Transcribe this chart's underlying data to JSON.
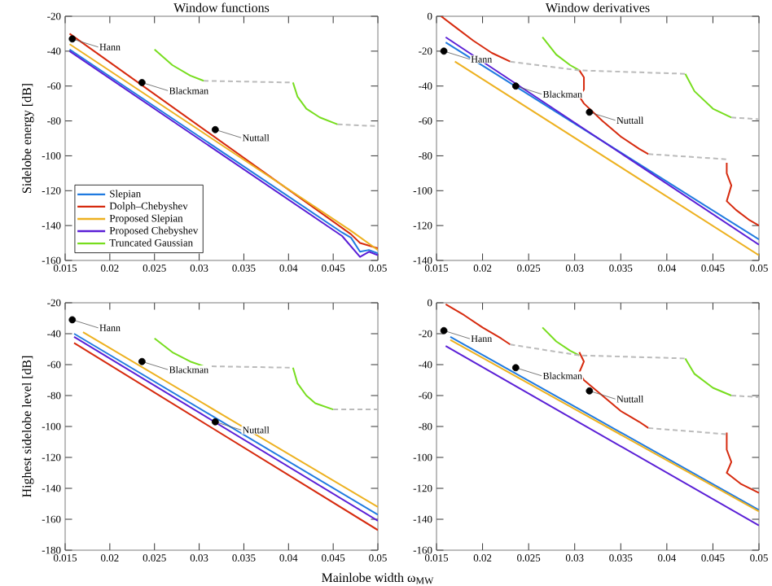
{
  "chart_data": [
    {
      "type": "line",
      "title": "Window functions",
      "ylabel": "Sidelobe energy [dB]",
      "xlim": [
        0.015,
        0.05
      ],
      "ylim": [
        -160,
        -20
      ],
      "xticks": [
        0.015,
        0.02,
        0.025,
        0.03,
        0.035,
        0.04,
        0.045,
        0.05
      ],
      "yticks": [
        -160,
        -140,
        -120,
        -100,
        -80,
        -60,
        -40,
        -20
      ],
      "legend": "bottom left",
      "series": [
        {
          "name": "Slepian",
          "color": "#1f7ae0",
          "x": [
            0.0155,
            0.046,
            0.047,
            0.048,
            0.049,
            0.05
          ],
          "values": [
            -39,
            -144,
            -147,
            -155,
            -154,
            -156
          ]
        },
        {
          "name": "Dolph–Chebyshev",
          "color": "#d62a0e",
          "x": [
            0.0155,
            0.047,
            0.048,
            0.05
          ],
          "values": [
            -30,
            -145,
            -150,
            -153
          ]
        },
        {
          "name": "Proposed Slepian",
          "color": "#edb120",
          "x": [
            0.0155,
            0.047,
            0.05
          ],
          "values": [
            -36,
            -143,
            -154
          ]
        },
        {
          "name": "Proposed Chebyshev",
          "color": "#5a1fd6",
          "x": [
            0.0155,
            0.046,
            0.048,
            0.049,
            0.05
          ],
          "values": [
            -40,
            -146,
            -158,
            -155,
            -157
          ]
        },
        {
          "name": "Truncated Gaussian",
          "color": "#77dd1e",
          "x": [
            0.025,
            0.027,
            0.029,
            0.0305,
            0.035,
            0.0405,
            0.041,
            0.042,
            0.0435,
            0.0455
          ],
          "values": [
            -39,
            -48,
            -54,
            -57,
            null,
            -58,
            -66,
            -73,
            -78,
            -82
          ]
        },
        {
          "color": "#bbbbbb",
          "line_style": "dashed",
          "x": [
            0.0305,
            0.0405,
            0.043,
            0.0455,
            0.05
          ],
          "values": [
            -57,
            -58,
            null,
            -82,
            -83
          ]
        },
        {
          "type": "scatter",
          "color": "#000000",
          "marker": "circle",
          "x": [
            0.0158,
            0.0236,
            0.0318
          ],
          "values": [
            -33,
            -58,
            -85
          ]
        }
      ],
      "annotations": [
        {
          "text": "Hann",
          "x": 0.0158,
          "y": -33
        },
        {
          "text": "Blackman",
          "x": 0.0236,
          "y": -58
        },
        {
          "text": "Nuttall",
          "x": 0.0318,
          "y": -85
        }
      ]
    },
    {
      "type": "line",
      "title": "Window derivatives",
      "xlim": [
        0.015,
        0.05
      ],
      "ylim": [
        -140,
        0
      ],
      "xticks": [
        0.015,
        0.02,
        0.025,
        0.03,
        0.035,
        0.04,
        0.045,
        0.05
      ],
      "yticks": [
        -140,
        -120,
        -100,
        -80,
        -60,
        -40,
        -20,
        0
      ],
      "series": [
        {
          "color": "#edb120",
          "x": [
            0.017,
            0.05
          ],
          "values": [
            -26,
            -137
          ]
        },
        {
          "color": "#1f7ae0",
          "x": [
            0.016,
            0.05
          ],
          "values": [
            -15,
            -128
          ]
        },
        {
          "color": "#5a1fd6",
          "x": [
            0.016,
            0.05
          ],
          "values": [
            -12,
            -131
          ]
        },
        {
          "color": "#d62a0e",
          "x": [
            0.0155,
            0.017,
            0.019,
            0.021,
            0.023,
            0.027,
            0.0305,
            0.031,
            0.031,
            0.0305,
            0.031,
            0.033,
            0.035,
            0.037,
            0.038,
            0.042,
            0.0465,
            0.0465,
            0.047,
            0.0465,
            0.0475,
            0.049,
            0.05
          ],
          "values": [
            0,
            -6,
            -14,
            -21,
            -26,
            null,
            -31,
            -35,
            -42,
            -46,
            -50,
            -60,
            -69,
            -76,
            -79,
            null,
            -84,
            -90,
            -97,
            -106,
            -111,
            -117,
            -120
          ]
        },
        {
          "color": "#77dd1e",
          "x": [
            0.0265,
            0.028,
            0.0295,
            0.0305,
            0.036,
            0.042,
            0.043,
            0.045,
            0.047
          ],
          "values": [
            -12,
            -22,
            -28,
            -31,
            null,
            -33,
            -43,
            -53,
            -58
          ]
        },
        {
          "color": "#bbbbbb",
          "line_style": "dashed",
          "x": [
            0.023,
            0.0305,
            0.042,
            0.045,
            0.047,
            0.05,
            0.045,
            0.038,
            0.0465
          ],
          "values": [
            -26,
            -31,
            -33,
            null,
            -58,
            -59,
            null,
            -79,
            -82
          ]
        },
        {
          "type": "scatter",
          "color": "#000000",
          "marker": "circle",
          "x": [
            0.0158,
            0.0236,
            0.0316
          ],
          "values": [
            -20,
            -40,
            -55
          ]
        }
      ],
      "annotations": [
        {
          "text": "Hann",
          "x": 0.0158,
          "y": -20
        },
        {
          "text": "Blackman",
          "x": 0.0236,
          "y": -40
        },
        {
          "text": "Nuttall",
          "x": 0.0316,
          "y": -55
        }
      ]
    },
    {
      "type": "line",
      "ylabel": "Highest sidelobe level [dB]",
      "xlabel": "Mainlobe width ω$_{MW}$",
      "xlim": [
        0.015,
        0.05
      ],
      "ylim": [
        -180,
        -20
      ],
      "xticks": [
        0.015,
        0.02,
        0.025,
        0.03,
        0.035,
        0.04,
        0.045,
        0.05
      ],
      "yticks": [
        -180,
        -160,
        -140,
        -120,
        -100,
        -80,
        -60,
        -40,
        -20
      ],
      "series": [
        {
          "color": "#edb120",
          "x": [
            0.017,
            0.05
          ],
          "values": [
            -39,
            -152
          ]
        },
        {
          "color": "#1f7ae0",
          "x": [
            0.016,
            0.05
          ],
          "values": [
            -40,
            -157
          ]
        },
        {
          "color": "#5a1fd6",
          "x": [
            0.016,
            0.05
          ],
          "values": [
            -42,
            -161
          ]
        },
        {
          "color": "#d62a0e",
          "x": [
            0.016,
            0.05
          ],
          "values": [
            -46,
            -167
          ]
        },
        {
          "color": "#77dd1e",
          "x": [
            0.025,
            0.027,
            0.029,
            0.0305,
            0.035,
            0.0405,
            0.041,
            0.042,
            0.043,
            0.045
          ],
          "values": [
            -43,
            -52,
            -58,
            -61,
            null,
            -62,
            -72,
            -80,
            -85,
            -89
          ]
        },
        {
          "color": "#bbbbbb",
          "line_style": "dashed",
          "x": [
            0.0305,
            0.0405,
            0.043,
            0.045,
            0.05
          ],
          "values": [
            -61,
            -62,
            null,
            -89,
            -89
          ]
        },
        {
          "type": "scatter",
          "color": "#000000",
          "marker": "circle",
          "x": [
            0.0158,
            0.0236,
            0.0318
          ],
          "values": [
            -31,
            -58,
            -97
          ]
        }
      ],
      "annotations": [
        {
          "text": "Hann",
          "x": 0.0158,
          "y": -31
        },
        {
          "text": "Blackman",
          "x": 0.0236,
          "y": -58
        },
        {
          "text": "Nuttall",
          "x": 0.0318,
          "y": -97
        }
      ]
    },
    {
      "type": "line",
      "xlim": [
        0.015,
        0.05
      ],
      "ylim": [
        -160,
        0
      ],
      "xticks": [
        0.015,
        0.02,
        0.025,
        0.03,
        0.035,
        0.04,
        0.045,
        0.05
      ],
      "yticks": [
        -160,
        -140,
        -120,
        -100,
        -80,
        -60,
        -40,
        -20,
        0
      ],
      "series": [
        {
          "color": "#1f7ae0",
          "x": [
            0.0165,
            0.05
          ],
          "values": [
            -22,
            -134
          ]
        },
        {
          "color": "#edb120",
          "x": [
            0.0165,
            0.05
          ],
          "values": [
            -24,
            -135
          ]
        },
        {
          "color": "#5a1fd6",
          "x": [
            0.016,
            0.05
          ],
          "values": [
            -28,
            -144
          ]
        },
        {
          "color": "#d62a0e",
          "x": [
            0.016,
            0.018,
            0.02,
            0.022,
            0.023,
            0.027,
            0.0305,
            0.031,
            0.0305,
            0.031,
            0.033,
            0.035,
            0.037,
            0.038,
            0.042,
            0.0465,
            0.0465,
            0.047,
            0.0465,
            0.048,
            0.05
          ],
          "values": [
            -1,
            -8,
            -16,
            -23,
            -27,
            null,
            -32,
            -38,
            -45,
            -50,
            -60,
            -70,
            -77,
            -81,
            null,
            -84,
            -95,
            -103,
            -110,
            -117,
            -123
          ]
        },
        {
          "color": "#77dd1e",
          "x": [
            0.0265,
            0.028,
            0.0295,
            0.0305,
            0.036,
            0.042,
            0.043,
            0.045,
            0.047
          ],
          "values": [
            -16,
            -25,
            -31,
            -34,
            null,
            -36,
            -46,
            -55,
            -60
          ]
        },
        {
          "color": "#bbbbbb",
          "line_style": "dashed",
          "x": [
            0.023,
            0.0305,
            0.042,
            0.045,
            0.047,
            0.05,
            0.045,
            0.038,
            0.0465
          ],
          "values": [
            -27,
            -34,
            -36,
            null,
            -60,
            -61,
            null,
            -81,
            -85
          ]
        },
        {
          "type": "scatter",
          "color": "#000000",
          "marker": "circle",
          "x": [
            0.0158,
            0.0236,
            0.0316
          ],
          "values": [
            -18,
            -42,
            -57
          ]
        }
      ],
      "annotations": [
        {
          "text": "Hann",
          "x": 0.0158,
          "y": -18
        },
        {
          "text": "Blackman",
          "x": 0.0236,
          "y": -42
        },
        {
          "text": "Nuttall",
          "x": 0.0316,
          "y": -57
        }
      ]
    }
  ]
}
